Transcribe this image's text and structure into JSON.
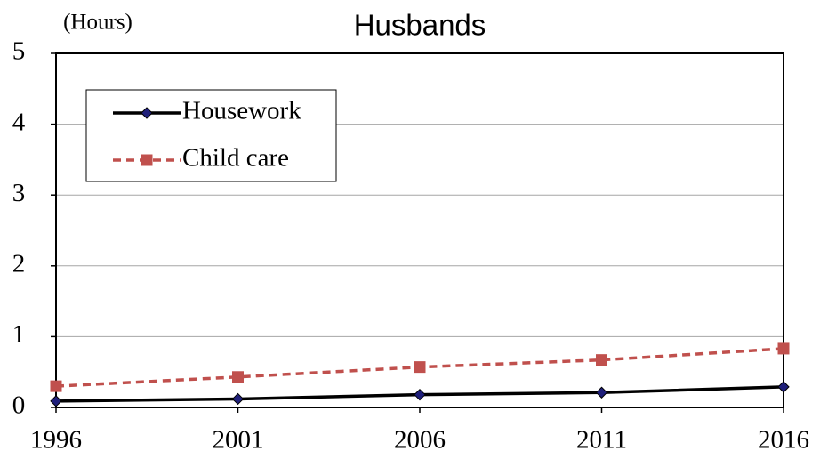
{
  "chart_data": {
    "type": "line",
    "title": "Husbands",
    "y_label": "(Hours)",
    "x": [
      1996,
      2001,
      2006,
      2011,
      2016
    ],
    "xlim": [
      1996,
      2016
    ],
    "xticks": [
      1996,
      2001,
      2006,
      2011,
      2016
    ],
    "ylim": [
      0,
      5
    ],
    "yticks": [
      0,
      1,
      2,
      3,
      4,
      5
    ],
    "grid": true,
    "legend": "upper left",
    "series": [
      {
        "name": "Housework",
        "color": "#000000",
        "marker_color": "#1f1f7a",
        "marker": "diamond",
        "dash": "solid",
        "values": [
          0.09,
          0.12,
          0.18,
          0.21,
          0.29
        ]
      },
      {
        "name": "Child care",
        "color": "#c0504d",
        "marker_color": "#c0504d",
        "marker": "square",
        "dash": "dashed",
        "values": [
          0.3,
          0.43,
          0.57,
          0.67,
          0.83
        ]
      }
    ]
  }
}
